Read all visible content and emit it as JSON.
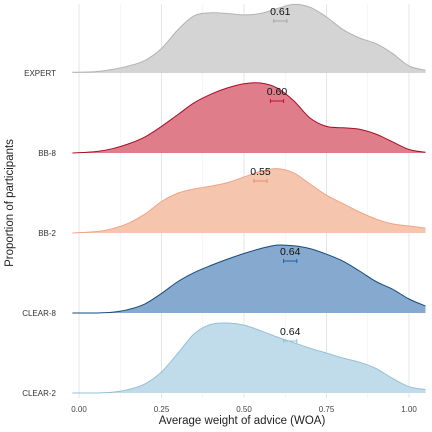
{
  "chart_data": {
    "type": "area",
    "subtype": "ridgeline",
    "xlabel": "Average weight of advice (WOA)",
    "ylabel": "Proportion of participants",
    "xlim": [
      -0.08,
      1.05
    ],
    "x_ticks": [
      0,
      0.25,
      0.5,
      0.75,
      1.0
    ],
    "x_tick_labels": [
      "0.00",
      "0.25",
      "0.50",
      "0.75",
      "1.00"
    ],
    "grid": true,
    "legend": "none",
    "series": [
      {
        "name": "EXPERT",
        "fill": "#d4d4d4",
        "stroke": "#b3b3b3",
        "mean_label": "0.61",
        "mean": 0.61,
        "ci": [
          0.59,
          0.63
        ],
        "ci_color": "#a6a6a6",
        "x": [
          -0.02,
          0.05,
          0.1,
          0.15,
          0.2,
          0.25,
          0.3,
          0.35,
          0.4,
          0.45,
          0.5,
          0.55,
          0.6,
          0.65,
          0.7,
          0.75,
          0.8,
          0.85,
          0.9,
          0.95,
          1.0,
          1.05
        ],
        "density": [
          0.01,
          0.02,
          0.05,
          0.1,
          0.18,
          0.35,
          0.62,
          0.82,
          0.86,
          0.85,
          0.83,
          0.85,
          0.92,
          0.98,
          0.94,
          0.8,
          0.62,
          0.5,
          0.42,
          0.28,
          0.1,
          0.04
        ]
      },
      {
        "name": "BB-8",
        "fill": "#e07d8a",
        "stroke": "#a50f26",
        "mean_label": "0.60",
        "mean": 0.6,
        "ci": [
          0.58,
          0.62
        ],
        "ci_color": "#c8102e",
        "x": [
          -0.02,
          0.05,
          0.1,
          0.15,
          0.2,
          0.25,
          0.3,
          0.35,
          0.4,
          0.45,
          0.5,
          0.55,
          0.6,
          0.65,
          0.7,
          0.75,
          0.8,
          0.85,
          0.9,
          0.95,
          1.0,
          1.05
        ],
        "density": [
          0.0,
          0.02,
          0.06,
          0.13,
          0.23,
          0.38,
          0.55,
          0.72,
          0.84,
          0.93,
          0.99,
          1.0,
          0.93,
          0.75,
          0.5,
          0.38,
          0.36,
          0.34,
          0.27,
          0.16,
          0.05,
          0.01
        ]
      },
      {
        "name": "BB-2",
        "fill": "#f6c5ad",
        "stroke": "#eea487",
        "mean_label": "0.55",
        "mean": 0.55,
        "ci": [
          0.53,
          0.57
        ],
        "ci_color": "#e58f72",
        "x": [
          -0.02,
          0.05,
          0.1,
          0.15,
          0.2,
          0.25,
          0.3,
          0.35,
          0.4,
          0.45,
          0.5,
          0.55,
          0.6,
          0.65,
          0.7,
          0.75,
          0.8,
          0.85,
          0.9,
          0.95,
          1.0,
          1.05
        ],
        "density": [
          0.0,
          0.02,
          0.06,
          0.14,
          0.27,
          0.45,
          0.57,
          0.63,
          0.67,
          0.72,
          0.8,
          0.88,
          0.92,
          0.86,
          0.7,
          0.54,
          0.42,
          0.3,
          0.2,
          0.13,
          0.1,
          0.07
        ]
      },
      {
        "name": "CLEAR-8",
        "fill": "#86a9cf",
        "stroke": "#174a7e",
        "mean_label": "0.64",
        "mean": 0.64,
        "ci": [
          0.62,
          0.66
        ],
        "ci_color": "#1f5fa0",
        "x": [
          -0.02,
          0.05,
          0.1,
          0.15,
          0.2,
          0.25,
          0.3,
          0.35,
          0.4,
          0.45,
          0.5,
          0.55,
          0.6,
          0.65,
          0.7,
          0.75,
          0.8,
          0.85,
          0.9,
          0.95,
          1.0,
          1.05
        ],
        "density": [
          0.0,
          0.0,
          0.01,
          0.05,
          0.13,
          0.28,
          0.45,
          0.58,
          0.68,
          0.77,
          0.85,
          0.92,
          0.97,
          0.96,
          0.92,
          0.84,
          0.74,
          0.6,
          0.45,
          0.34,
          0.2,
          0.1
        ]
      },
      {
        "name": "CLEAR-2",
        "fill": "#c0dceb",
        "stroke": "#94bfd7",
        "mean_label": "0.64",
        "mean": 0.64,
        "ci": [
          0.62,
          0.66
        ],
        "ci_color": "#8fc1dc",
        "x": [
          -0.02,
          0.05,
          0.1,
          0.15,
          0.2,
          0.25,
          0.3,
          0.35,
          0.4,
          0.45,
          0.5,
          0.55,
          0.6,
          0.65,
          0.7,
          0.75,
          0.8,
          0.85,
          0.9,
          0.95,
          1.0,
          1.05
        ],
        "density": [
          0.0,
          0.0,
          0.01,
          0.05,
          0.13,
          0.3,
          0.57,
          0.85,
          0.98,
          1.0,
          0.97,
          0.89,
          0.8,
          0.72,
          0.64,
          0.57,
          0.5,
          0.44,
          0.35,
          0.21,
          0.09,
          0.05
        ]
      }
    ]
  }
}
